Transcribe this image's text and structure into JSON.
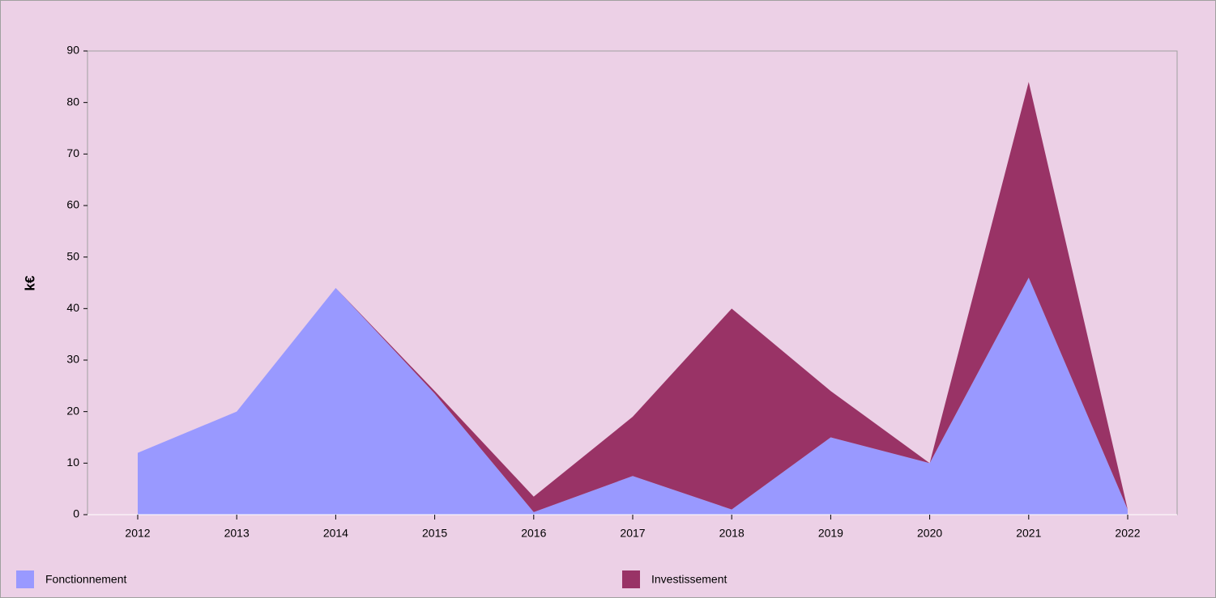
{
  "chart_data": {
    "type": "stacked-area",
    "y_label": "k€",
    "categories": [
      "2012",
      "2013",
      "2014",
      "2015",
      "2016",
      "2017",
      "2018",
      "2019",
      "2020",
      "2021",
      "2022"
    ],
    "series": [
      {
        "name": "Fonctionnement",
        "color": "#9999ff",
        "values": [
          12,
          20,
          44,
          23.5,
          0.5,
          7.5,
          1,
          15,
          10,
          46,
          1
        ]
      },
      {
        "name": "Investissement",
        "color": "#993366",
        "values": [
          0,
          0,
          0,
          0.5,
          3,
          11.5,
          39,
          9,
          0,
          38,
          0
        ]
      }
    ],
    "ylim": [
      0,
      90
    ],
    "yticks": [
      0,
      10,
      20,
      30,
      40,
      50,
      60,
      70,
      80,
      90
    ]
  }
}
